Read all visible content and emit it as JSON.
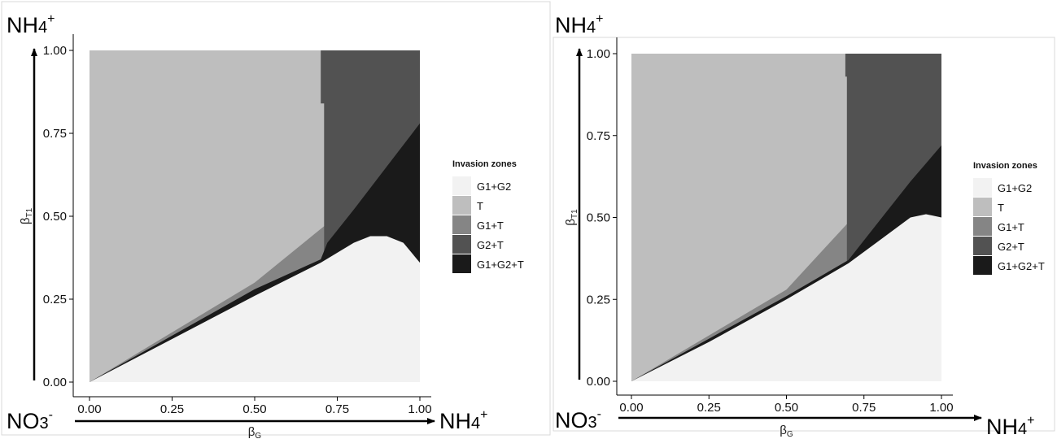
{
  "chart_data": [
    {
      "type": "heatmap",
      "title": "",
      "xlabel": "βG",
      "ylabel": "βT1",
      "xlim": [
        0,
        1
      ],
      "ylim": [
        0,
        1
      ],
      "x_ticks": [
        "0.00",
        "0.25",
        "0.50",
        "0.75",
        "1.00"
      ],
      "y_ticks": [
        "0.00",
        "0.25",
        "0.50",
        "0.75",
        "1.00"
      ],
      "grid": false,
      "legend": {
        "title": "Invasion zones",
        "placement": "right",
        "entries": [
          {
            "label": "G1+G2",
            "color": "#f2f2f2"
          },
          {
            "label": "T",
            "color": "#bebebe"
          },
          {
            "label": "G1+T",
            "color": "#858585"
          },
          {
            "label": "G2+T",
            "color": "#525252"
          },
          {
            "label": "G1+G2+T",
            "color": "#1a1a1a"
          }
        ]
      },
      "axis_annotations": {
        "y_top": "NH4+",
        "x_origin": "NO3-",
        "x_end": "NH4+"
      },
      "boundaries": {
        "G1+G2_upper": [
          [
            0.0,
            0.0
          ],
          [
            0.25,
            0.13
          ],
          [
            0.5,
            0.26
          ],
          [
            0.7,
            0.36
          ],
          [
            0.8,
            0.42
          ],
          [
            0.85,
            0.44
          ],
          [
            0.9,
            0.44
          ],
          [
            0.95,
            0.42
          ],
          [
            1.0,
            0.36
          ]
        ],
        "G1+G2+T_upper": [
          [
            0.0,
            0.0
          ],
          [
            0.25,
            0.14
          ],
          [
            0.5,
            0.28
          ],
          [
            0.7,
            0.37
          ],
          [
            0.72,
            0.42
          ],
          [
            0.8,
            0.52
          ],
          [
            0.9,
            0.65
          ],
          [
            1.0,
            0.78
          ]
        ],
        "G1+T_upper": [
          [
            0.0,
            0.0
          ],
          [
            0.25,
            0.15
          ],
          [
            0.5,
            0.3
          ],
          [
            0.71,
            0.47
          ]
        ],
        "G2+T_left": [
          [
            0.71,
            0.47
          ],
          [
            0.71,
            0.84
          ],
          [
            0.7,
            0.84
          ],
          [
            0.7,
            1.0
          ]
        ]
      }
    },
    {
      "type": "heatmap",
      "title": "",
      "xlabel": "βG",
      "ylabel": "βT1",
      "xlim": [
        0,
        1
      ],
      "ylim": [
        0,
        1
      ],
      "x_ticks": [
        "0.00",
        "0.25",
        "0.50",
        "0.75",
        "1.00"
      ],
      "y_ticks": [
        "0.00",
        "0.25",
        "0.50",
        "0.75",
        "1.00"
      ],
      "grid": false,
      "legend": {
        "title": "Invasion zones",
        "placement": "right",
        "entries": [
          {
            "label": "G1+G2",
            "color": "#f2f2f2"
          },
          {
            "label": "T",
            "color": "#bebebe"
          },
          {
            "label": "G1+T",
            "color": "#858585"
          },
          {
            "label": "G2+T",
            "color": "#525252"
          },
          {
            "label": "G1+G2+T",
            "color": "#1a1a1a"
          }
        ]
      },
      "axis_annotations": {
        "y_top": "NH4+",
        "x_origin": "NO3-",
        "x_end": "NH4+"
      },
      "boundaries": {
        "G1+G2_upper": [
          [
            0.0,
            0.0
          ],
          [
            0.25,
            0.12
          ],
          [
            0.5,
            0.25
          ],
          [
            0.7,
            0.36
          ],
          [
            0.8,
            0.43
          ],
          [
            0.9,
            0.5
          ],
          [
            0.95,
            0.51
          ],
          [
            1.0,
            0.5
          ]
        ],
        "G1+G2+T_upper": [
          [
            0.0,
            0.0
          ],
          [
            0.25,
            0.13
          ],
          [
            0.5,
            0.26
          ],
          [
            0.7,
            0.37
          ],
          [
            0.8,
            0.49
          ],
          [
            0.9,
            0.61
          ],
          [
            1.0,
            0.72
          ]
        ],
        "G1+T_upper": [
          [
            0.0,
            0.0
          ],
          [
            0.25,
            0.14
          ],
          [
            0.5,
            0.28
          ],
          [
            0.695,
            0.48
          ]
        ],
        "G2+T_left": [
          [
            0.695,
            0.48
          ],
          [
            0.695,
            0.93
          ],
          [
            0.69,
            0.93
          ],
          [
            0.69,
            1.0
          ]
        ]
      }
    }
  ]
}
